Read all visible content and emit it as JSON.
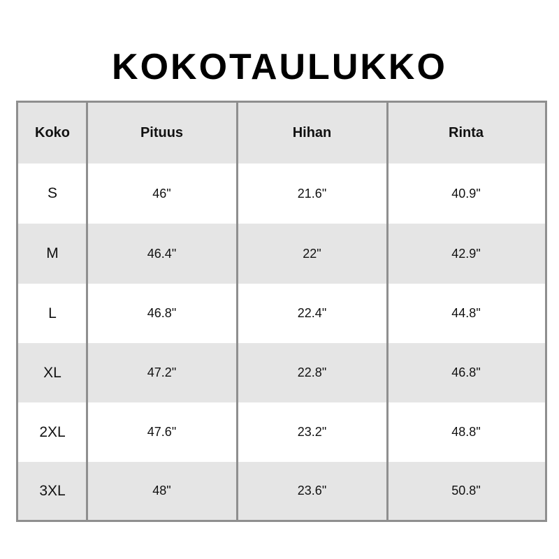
{
  "title": "KOKOTAULUKKO",
  "table": {
    "headers": [
      "Koko",
      "Pituus",
      "Hihan",
      "Rinta"
    ],
    "rows": [
      [
        "S",
        "46\"",
        "21.6\"",
        "40.9\""
      ],
      [
        "M",
        "46.4\"",
        "22\"",
        "42.9\""
      ],
      [
        "L",
        "46.8\"",
        "22.4\"",
        "44.8\""
      ],
      [
        "XL",
        "47.2\"",
        "22.8\"",
        "46.8\""
      ],
      [
        "2XL",
        "47.6\"",
        "23.2\"",
        "48.8\""
      ],
      [
        "3XL",
        "48\"",
        "23.6\"",
        "50.8\""
      ]
    ]
  },
  "colors": {
    "border": "#8f8f8f",
    "band": "#e5e5e5"
  }
}
